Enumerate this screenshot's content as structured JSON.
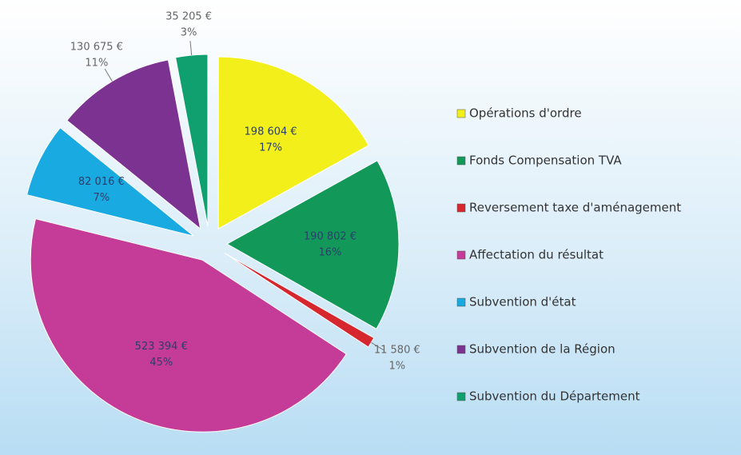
{
  "chart_data": {
    "type": "pie",
    "categories": [
      "Opérations d'ordre",
      "Fonds Compensation TVA",
      "Reversement taxe d'aménagement",
      "Affectation du résultat",
      "Subvention d'état",
      "Subvention de la Région",
      "Subvention du Département"
    ],
    "values": [
      198604,
      190802,
      11580,
      523394,
      82016,
      130675,
      35205
    ],
    "value_labels": [
      "198 604 €",
      "190 802 €",
      "11 580 €",
      "523 394 €",
      "82 016 €",
      "130 675 €",
      "35 205 €"
    ],
    "percent_labels": [
      "17%",
      "16%",
      "1%",
      "45%",
      "7%",
      "11%",
      "3%"
    ],
    "colors": [
      "#f2ef1a",
      "#12995a",
      "#d6262e",
      "#c53c98",
      "#18aae0",
      "#7b3290",
      "#10a070"
    ],
    "legend": "right"
  }
}
